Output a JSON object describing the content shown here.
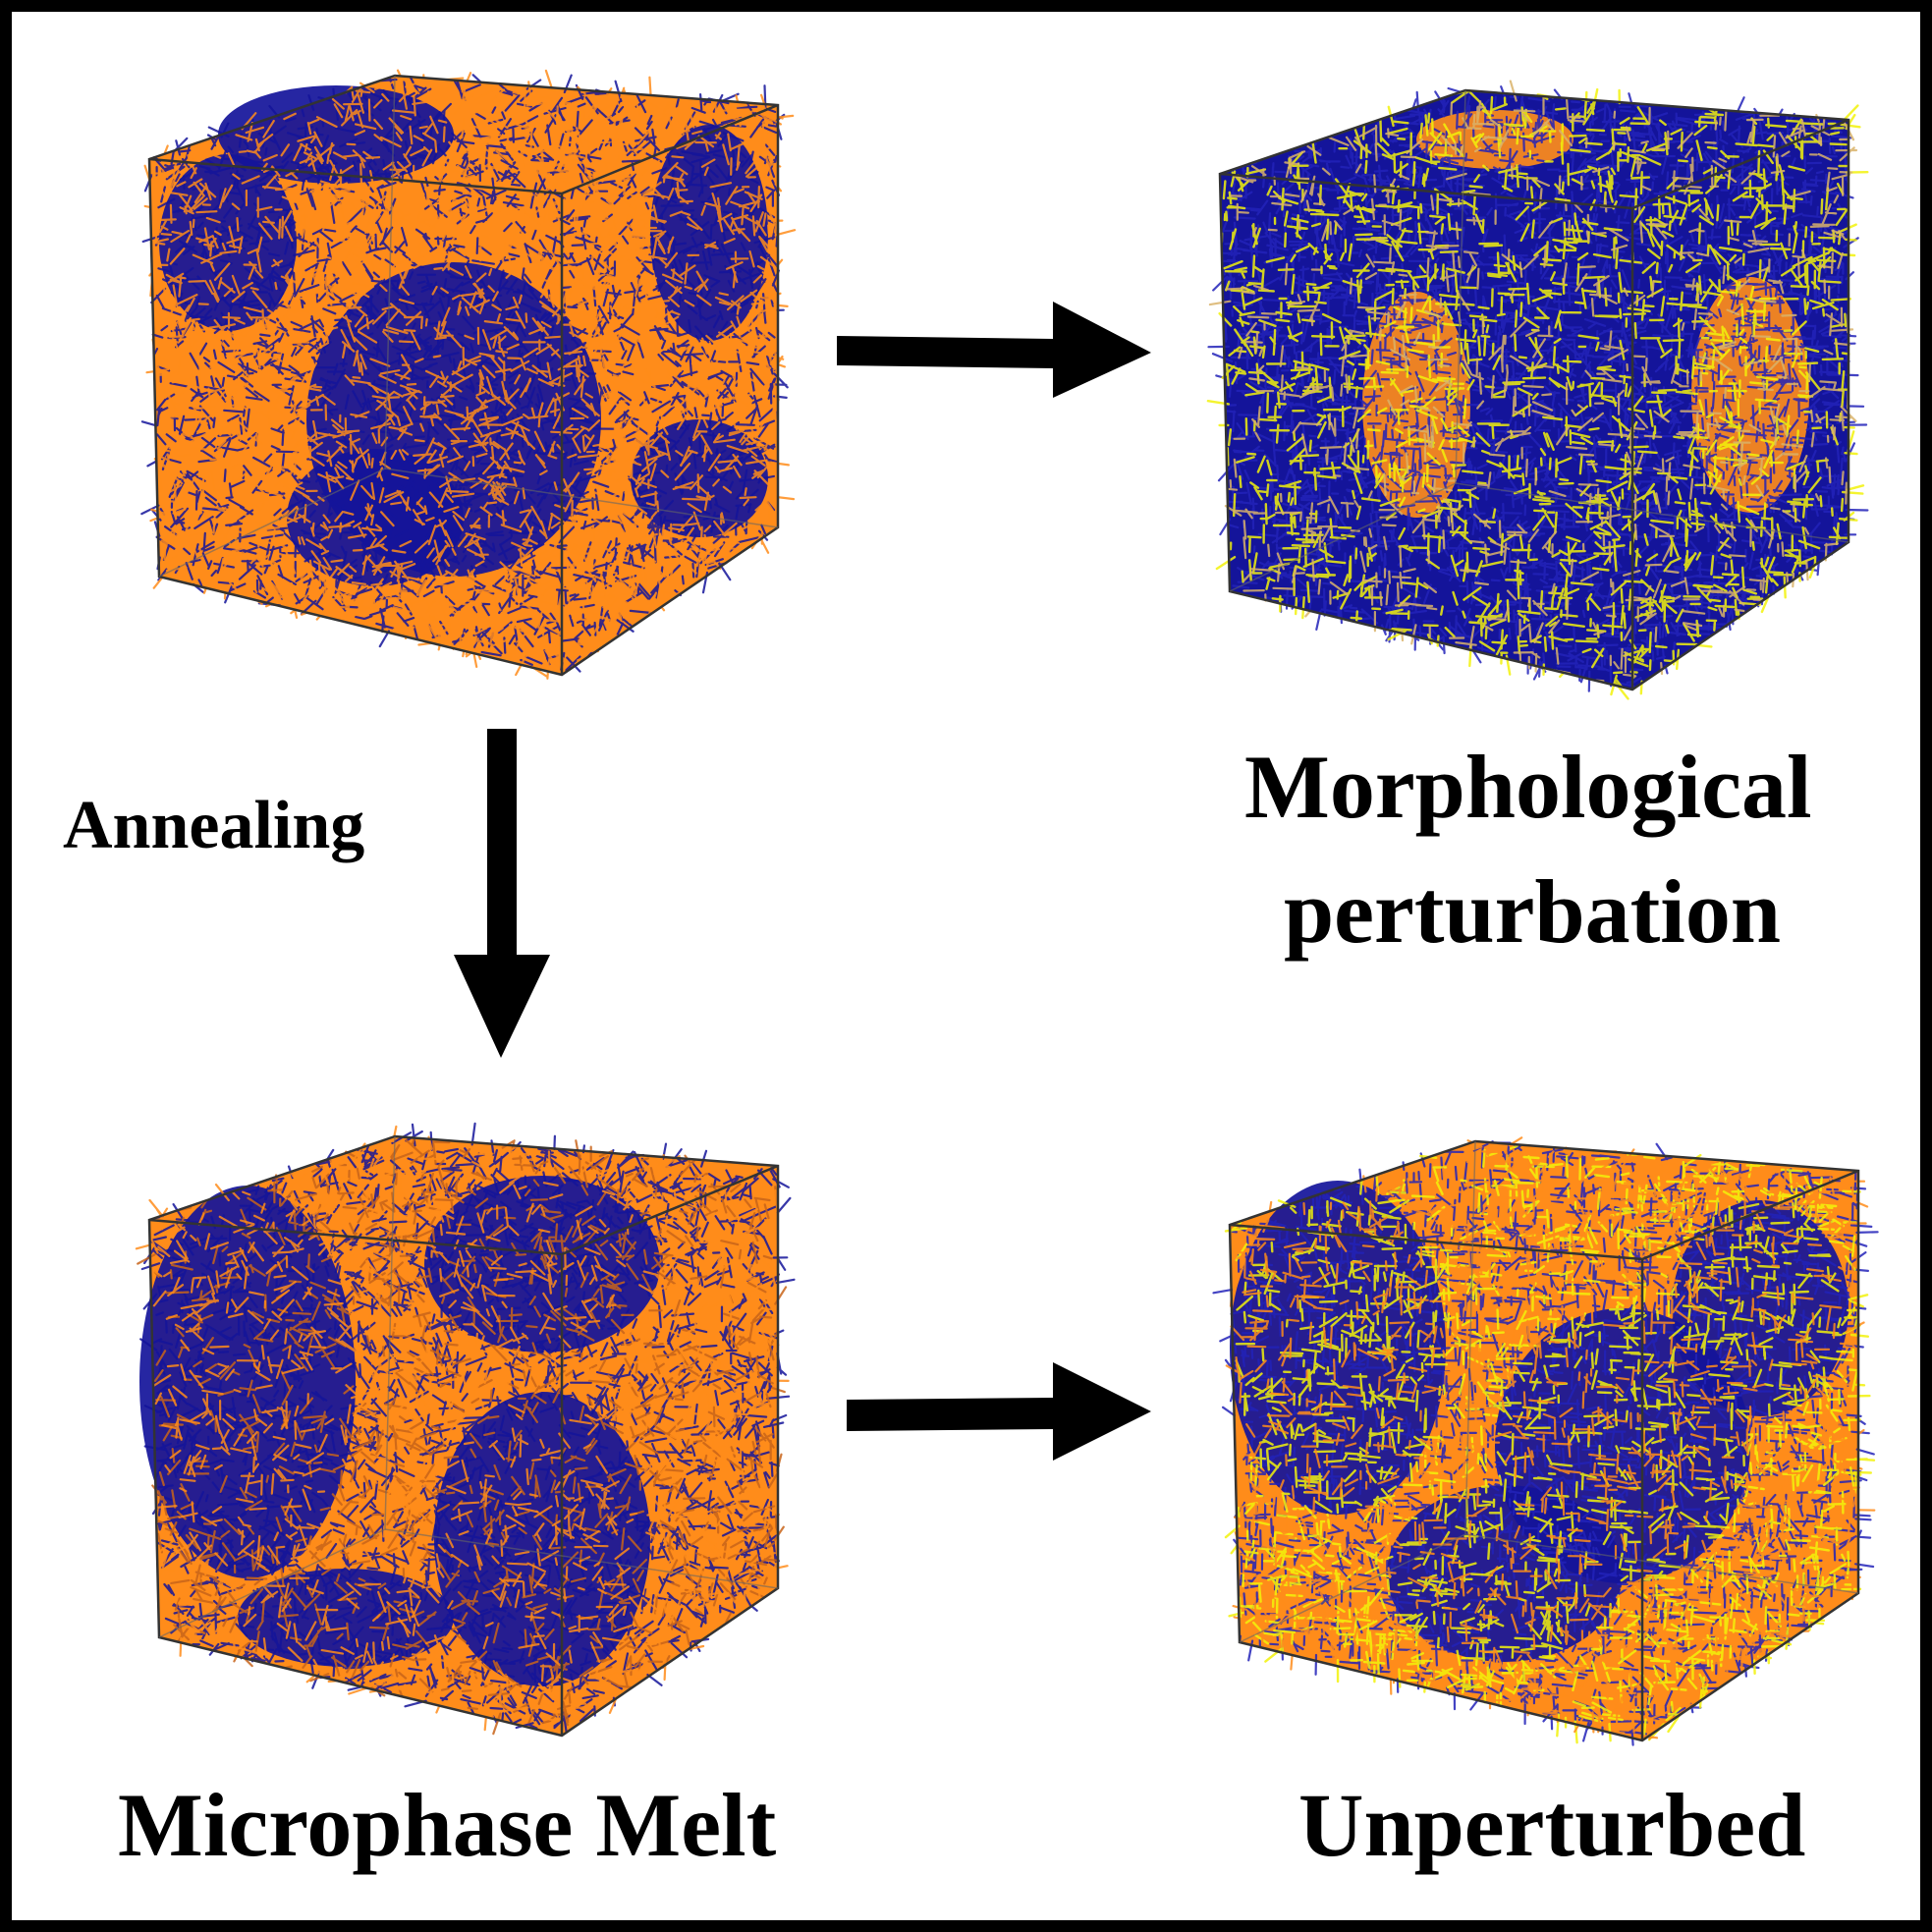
{
  "labels": {
    "annealing": "Annealing",
    "morphological": "Morphological",
    "perturbation": "perturbation",
    "microphase_melt": "Microphase Melt",
    "unperturbed": "Unperturbed"
  },
  "colors": {
    "orange_phase": "#ff8c1a",
    "blue_phase": "#14149a",
    "yellow_bonds": "#f2f20a",
    "arrow": "#000000",
    "box_edge": "#333333"
  }
}
